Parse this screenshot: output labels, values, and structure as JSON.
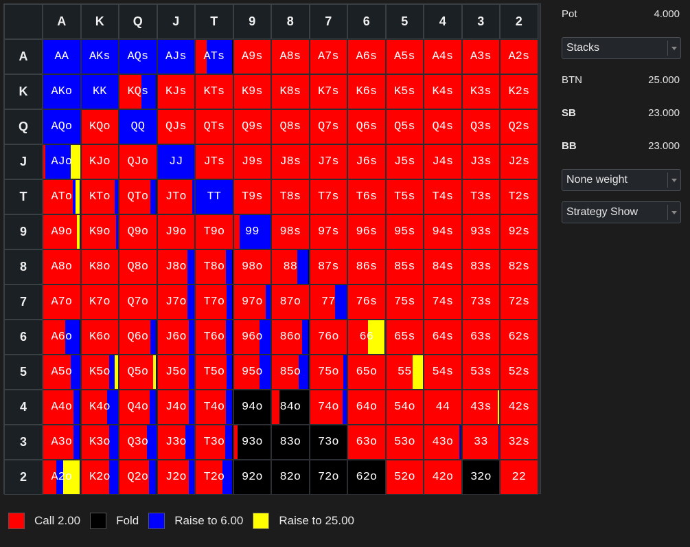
{
  "ranks": [
    "A",
    "K",
    "Q",
    "J",
    "T",
    "9",
    "8",
    "7",
    "6",
    "5",
    "4",
    "3",
    "2"
  ],
  "colors": {
    "call": "#ff0000",
    "fold": "#000000",
    "raise": "#0000ff",
    "allin": "#ffff00"
  },
  "strategy_grid": [
    [
      "AA",
      "AKs",
      "AQs",
      "AJs",
      "ATs",
      "A9s",
      "A8s",
      "A7s",
      "A6s",
      "A5s",
      "A4s",
      "A3s",
      "A2s"
    ],
    [
      "AKo",
      "KK",
      "KQs",
      "KJs",
      "KTs",
      "K9s",
      "K8s",
      "K7s",
      "K6s",
      "K5s",
      "K4s",
      "K3s",
      "K2s"
    ],
    [
      "AQo",
      "KQo",
      "QQ",
      "QJs",
      "QTs",
      "Q9s",
      "Q8s",
      "Q7s",
      "Q6s",
      "Q5s",
      "Q4s",
      "Q3s",
      "Q2s"
    ],
    [
      "AJo",
      "KJo",
      "QJo",
      "JJ",
      "JTs",
      "J9s",
      "J8s",
      "J7s",
      "J6s",
      "J5s",
      "J4s",
      "J3s",
      "J2s"
    ],
    [
      "ATo",
      "KTo",
      "QTo",
      "JTo",
      "TT",
      "T9s",
      "T8s",
      "T7s",
      "T6s",
      "T5s",
      "T4s",
      "T3s",
      "T2s"
    ],
    [
      "A9o",
      "K9o",
      "Q9o",
      "J9o",
      "T9o",
      "99",
      "98s",
      "97s",
      "96s",
      "95s",
      "94s",
      "93s",
      "92s"
    ],
    [
      "A8o",
      "K8o",
      "Q8o",
      "J8o",
      "T8o",
      "98o",
      "88",
      "87s",
      "86s",
      "85s",
      "84s",
      "83s",
      "82s"
    ],
    [
      "A7o",
      "K7o",
      "Q7o",
      "J7o",
      "T7o",
      "97o",
      "87o",
      "77",
      "76s",
      "75s",
      "74s",
      "73s",
      "72s"
    ],
    [
      "A6o",
      "K6o",
      "Q6o",
      "J6o",
      "T6o",
      "96o",
      "86o",
      "76o",
      "66",
      "65s",
      "64s",
      "63s",
      "62s"
    ],
    [
      "A5o",
      "K5o",
      "Q5o",
      "J5o",
      "T5o",
      "95o",
      "85o",
      "75o",
      "65o",
      "55",
      "54s",
      "53s",
      "52s"
    ],
    [
      "A4o",
      "K4o",
      "Q4o",
      "J4o",
      "T4o",
      "94o",
      "84o",
      "74o",
      "64o",
      "54o",
      "44",
      "43s",
      "42s"
    ],
    [
      "A3o",
      "K3o",
      "Q3o",
      "J3o",
      "T3o",
      "93o",
      "83o",
      "73o",
      "63o",
      "53o",
      "43o",
      "33",
      "32s"
    ],
    [
      "A2o",
      "K2o",
      "Q2o",
      "J2o",
      "T2o",
      "92o",
      "82o",
      "72o",
      "62o",
      "52o",
      "42o",
      "32o",
      "22"
    ]
  ],
  "frequencies_note_order": [
    "call",
    "raise",
    "allin",
    "fold"
  ],
  "frequencies": {
    "AA": {
      "raise": 1
    },
    "AKs": {
      "raise": 1
    },
    "AQs": {
      "raise": 1
    },
    "AJs": {
      "raise": 1
    },
    "ATs": {
      "call": 0.3,
      "raise": 0.7
    },
    "AKo": {
      "raise": 1
    },
    "KK": {
      "raise": 1
    },
    "KQs": {
      "call": 0.6,
      "raise": 0.4
    },
    "AQo": {
      "raise": 1
    },
    "QQ": {
      "raise": 1
    },
    "AJo": {
      "call": 0.05,
      "raise": 0.7,
      "allin": 0.25
    },
    "JJ": {
      "raise": 1
    },
    "ATo": {
      "call": 0.8,
      "raise": 0.08,
      "allin": 0.12
    },
    "KTo": {
      "call": 0.9,
      "raise": 0.1
    },
    "QTo": {
      "call": 0.85,
      "raise": 0.15
    },
    "TT": {
      "raise": 1
    },
    "JTo": {
      "call": 0.95,
      "raise": 0.05
    },
    "A9o": {
      "call": 0.92,
      "allin": 0.08
    },
    "99": {
      "call": 0.15,
      "raise": 0.85
    },
    "J8o": {
      "call": 0.82,
      "raise": 0.18
    },
    "T8o": {
      "call": 0.82,
      "raise": 0.18
    },
    "88": {
      "call": 0.7,
      "raise": 0.3
    },
    "J7o": {
      "call": 0.82,
      "raise": 0.18
    },
    "T7o": {
      "call": 0.85,
      "raise": 0.15
    },
    "97o": {
      "call": 0.87,
      "raise": 0.13
    },
    "77": {
      "call": 0.68,
      "raise": 0.32
    },
    "A6o": {
      "call": 0.6,
      "raise": 0.4
    },
    "Q6o": {
      "call": 0.85,
      "raise": 0.15
    },
    "J6o": {
      "call": 0.85,
      "raise": 0.15
    },
    "T6o": {
      "call": 0.82,
      "raise": 0.18
    },
    "96o": {
      "call": 0.7,
      "raise": 0.3
    },
    "86o": {
      "call": 0.82,
      "raise": 0.18
    },
    "66": {
      "call": 0.55,
      "allin": 0.45
    },
    "A5o": {
      "call": 0.75,
      "raise": 0.25
    },
    "K5o": {
      "call": 0.75,
      "raise": 0.15,
      "allin": 0.1
    },
    "Q5o": {
      "allin": 0.08,
      "call": 0.92
    },
    "J5o": {
      "call": 0.85,
      "raise": 0.15
    },
    "T5o": {
      "call": 0.85,
      "raise": 0.15
    },
    "95o": {
      "call": 0.7,
      "raise": 0.3
    },
    "85o": {
      "call": 0.72,
      "raise": 0.28
    },
    "75o": {
      "call": 0.9,
      "raise": 0.1
    },
    "55": {
      "call": 0.72,
      "allin": 0.28
    },
    "A4o": {
      "call": 0.82,
      "raise": 0.18
    },
    "K4o": {
      "call": 0.7,
      "raise": 0.3
    },
    "Q4o": {
      "call": 0.82,
      "raise": 0.18
    },
    "J4o": {
      "call": 0.85,
      "raise": 0.15
    },
    "T4o": {
      "call": 0.82,
      "raise": 0.18
    },
    "94o": {
      "fold": 1
    },
    "84o": {
      "call": 0.2,
      "fold": 0.8
    },
    "74o": {
      "call": 0.88,
      "raise": 0.12
    },
    "43s": {
      "allin": 0.04,
      "call": 0.96
    },
    "A3o": {
      "call": 0.82,
      "raise": 0.18
    },
    "K3o": {
      "call": 0.75,
      "raise": 0.25
    },
    "Q3o": {
      "call": 0.75,
      "raise": 0.25
    },
    "J3o": {
      "call": 0.75,
      "raise": 0.25
    },
    "T3o": {
      "call": 0.8,
      "raise": 0.2
    },
    "93o": {
      "call": 0.1,
      "fold": 0.9
    },
    "83o": {
      "fold": 1
    },
    "73o": {
      "fold": 1
    },
    "43o": {
      "call": 0.96,
      "raise": 0.04
    },
    "A2o": {
      "call": 0.35,
      "raise": 0.2,
      "allin": 0.45
    },
    "K2o": {
      "call": 0.75,
      "raise": 0.25
    },
    "Q2o": {
      "call": 0.8,
      "raise": 0.2
    },
    "J2o": {
      "call": 0.85,
      "raise": 0.15
    },
    "T2o": {
      "call": 0.72,
      "raise": 0.28
    },
    "92o": {
      "fold": 1
    },
    "82o": {
      "fold": 1
    },
    "72o": {
      "fold": 1
    },
    "62o": {
      "fold": 1
    },
    "32o": {
      "fold": 1
    },
    "33": {
      "call": 0.98,
      "raise": 0.02
    },
    "K9o": {
      "call": 0.95,
      "raise": 0.05
    }
  },
  "panel": {
    "pot_label": "Pot",
    "pot_value": "4.000",
    "stacks_label": "Stacks",
    "players": [
      {
        "name": "BTN",
        "stack": "25.000",
        "bold": false
      },
      {
        "name": "SB",
        "stack": "23.000",
        "bold": true
      },
      {
        "name": "BB",
        "stack": "23.000",
        "bold": true
      }
    ],
    "weight_label": "None weight",
    "strategy_label": "Strategy Show"
  },
  "legend": [
    {
      "key": "call",
      "label": "Call 2.00",
      "color": "#ff0000"
    },
    {
      "key": "fold",
      "label": "Fold",
      "color": "#000000"
    },
    {
      "key": "raise",
      "label": "Raise to 6.00",
      "color": "#0000ff"
    },
    {
      "key": "allin",
      "label": "Raise to 25.00",
      "color": "#ffff00"
    }
  ]
}
